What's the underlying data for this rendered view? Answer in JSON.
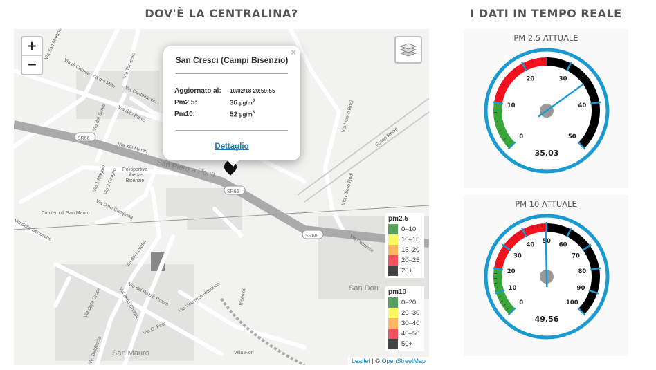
{
  "headings": {
    "map": "DOV'È LA CENTRALINA?",
    "realtime": "I DATI IN TEMPO REALE"
  },
  "map": {
    "zoom_in": "+",
    "zoom_out": "−",
    "labels": {
      "via_san_martino": "Via San Martino",
      "via_di_carraia": "Via di Carraia",
      "via_dei_mille": "Via dei Mille",
      "via_torricella": "Via Torricella",
      "via_castellaccio": "Via Castellaccio",
      "via_san_paolo": "Via San Paolo",
      "via_del_santo": "Via del Santo",
      "via_1_maggio": "Via 1 Maggio",
      "via_2_giugno": "Via 2 Giugno",
      "via_dino_campana": "Via Dino Campana",
      "via_xi_martiri": "Via XIII Martiri",
      "san_piero": "San Piero a Ponti",
      "polisportiva": "Polisportiva Libertas Bisenzio",
      "cimitero": "Cimitero di San Mauro",
      "via_delle_bertesche": "Via delle Bertesche",
      "via_dei_lavatoi": "Via dei Lavatoi",
      "via_del_pozzo_rosso": "Via del Pozzo Rosso",
      "via_della_croce": "Via della Croce",
      "via_della_chiesa": "Via della Chiesa",
      "via_vincenzo_nannucci": "Via Vincenzo Nannucci",
      "via_o_fedi": "Via O. Fedi",
      "san_mauro": "San Mauro",
      "via_baldoccia": "Via Baldoccia",
      "villa_flori": "Villa Flori",
      "bisenzio": "Bisenzio",
      "via_libero_rodi": "Via Libero Rodi",
      "fosso_reale": "Fosso Reale",
      "via_pistoiese": "Via Pistoiese",
      "san_donnino": "San Don",
      "sr66": "SR66"
    },
    "popup": {
      "title": "San Cresci (Campi Bisenzio)",
      "close": "×",
      "updated_label": "Aggiornato al:",
      "updated_value": "10/02/18 20:59:55",
      "pm25_label": "Pm2.5:",
      "pm25_value": "36",
      "pm10_label": "Pm10:",
      "pm10_value": "52",
      "unit": "µg/m",
      "unit_exp": "3",
      "link": "Dettaglio"
    },
    "legend_pm25": {
      "title": "pm2.5",
      "items": [
        {
          "label": "0–10",
          "color": "#55a05a"
        },
        {
          "label": "10–15",
          "color": "#fff860"
        },
        {
          "label": "15–20",
          "color": "#fdb462"
        },
        {
          "label": "20–25",
          "color": "#f7525f"
        },
        {
          "label": "25+",
          "color": "#444444"
        }
      ]
    },
    "legend_pm10": {
      "title": "pm10",
      "items": [
        {
          "label": "0–20",
          "color": "#55a05a"
        },
        {
          "label": "20–30",
          "color": "#fff860"
        },
        {
          "label": "30–40",
          "color": "#fdb462"
        },
        {
          "label": "40–50",
          "color": "#f7525f"
        },
        {
          "label": "50+",
          "color": "#444444"
        }
      ]
    },
    "attribution": {
      "leaflet": "Leaflet",
      "sep": " | © ",
      "osm": "OpenStreetMap"
    }
  },
  "gauges": [
    {
      "title": "PM 2.5 ATTUALE",
      "value": 35.03,
      "value_text": "35.03",
      "min": 0,
      "max": 50,
      "labels": [
        "0",
        "10",
        "20",
        "30",
        "40",
        "50"
      ],
      "bands": [
        {
          "from": 0,
          "to": 10,
          "color": "#3aa63a"
        },
        {
          "from": 10,
          "to": 25,
          "color": "#f5111e"
        },
        {
          "from": 25,
          "to": 50,
          "color": "#000000"
        }
      ],
      "accent": "#1a9ad0"
    },
    {
      "title": "PM 10 ATTUALE",
      "value": 49.56,
      "value_text": "49.56",
      "min": 0,
      "max": 100,
      "labels": [
        "0",
        "10",
        "20",
        "30",
        "40",
        "50",
        "60",
        "70",
        "80",
        "90",
        "100"
      ],
      "bands": [
        {
          "from": 0,
          "to": 20,
          "color": "#3aa63a"
        },
        {
          "from": 20,
          "to": 50,
          "color": "#f5111e"
        },
        {
          "from": 50,
          "to": 100,
          "color": "#000000"
        }
      ],
      "accent": "#1a9ad0"
    }
  ]
}
